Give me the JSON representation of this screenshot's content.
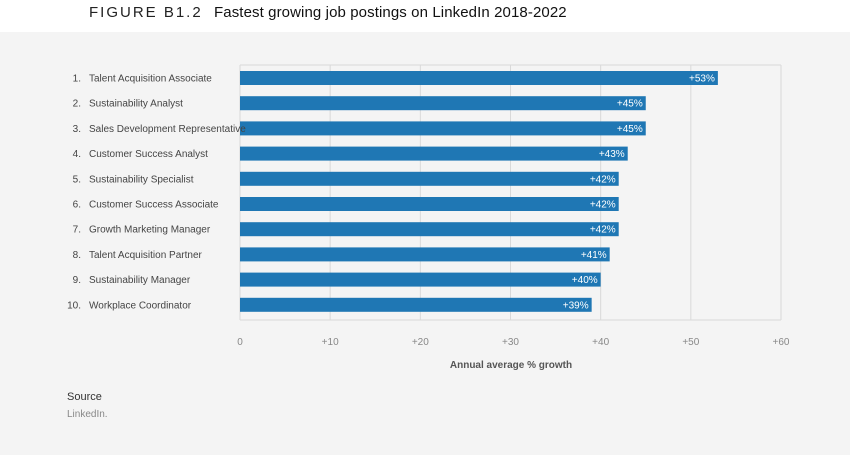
{
  "figure": {
    "label": "FIGURE B1.2",
    "title": "Fastest growing job postings on LinkedIn 2018-2022"
  },
  "source": {
    "heading": "Source",
    "text": "LinkedIn."
  },
  "colors": {
    "bar": "#1f77b4",
    "panel_bg": "#f4f4f4",
    "grid": "#d9d9d9"
  },
  "chart_data": {
    "type": "bar",
    "orientation": "horizontal",
    "categories": [
      "Talent Acquisition Associate",
      "Sustainability Analyst",
      "Sales Development Representative",
      "Customer Success Analyst",
      "Sustainability Specialist",
      "Customer Success Associate",
      "Growth Marketing Manager",
      "Talent Acquisition Partner",
      "Sustainability Manager",
      "Workplace Coordinator"
    ],
    "ranks": [
      "1.",
      "2.",
      "3.",
      "4.",
      "5.",
      "6.",
      "7.",
      "8.",
      "9.",
      "10."
    ],
    "values": [
      53,
      45,
      45,
      43,
      42,
      42,
      42,
      41,
      40,
      39
    ],
    "value_labels": [
      "+53%",
      "+45%",
      "+45%",
      "+43%",
      "+42%",
      "+42%",
      "+42%",
      "+41%",
      "+40%",
      "+39%"
    ],
    "xlabel": "Annual average % growth",
    "xlim": [
      0,
      60
    ],
    "xticks": [
      0,
      10,
      20,
      30,
      40,
      50,
      60
    ],
    "xtick_labels": [
      "0",
      "+10",
      "+20",
      "+30",
      "+40",
      "+50",
      "+60"
    ],
    "grid": true
  }
}
